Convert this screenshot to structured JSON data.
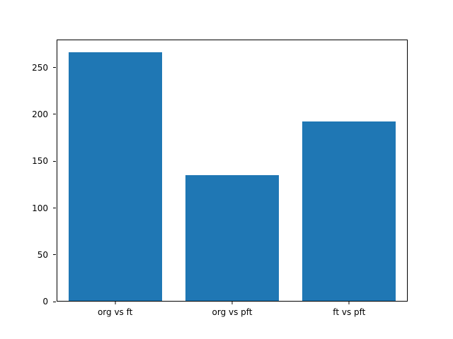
{
  "chart_data": {
    "type": "bar",
    "categories": [
      "org vs ft",
      "org vs pft",
      "ft vs pft"
    ],
    "values": [
      267,
      135,
      193
    ],
    "title": "",
    "xlabel": "",
    "ylabel": "",
    "ylim": [
      0,
      280
    ],
    "yticks": [
      0,
      50,
      100,
      150,
      200,
      250
    ],
    "bar_color": "#1f77b4",
    "bar_width_fraction": 0.8,
    "grid": false,
    "legend": "none",
    "background_color": "#ffffff",
    "axis_color": "#000000"
  }
}
